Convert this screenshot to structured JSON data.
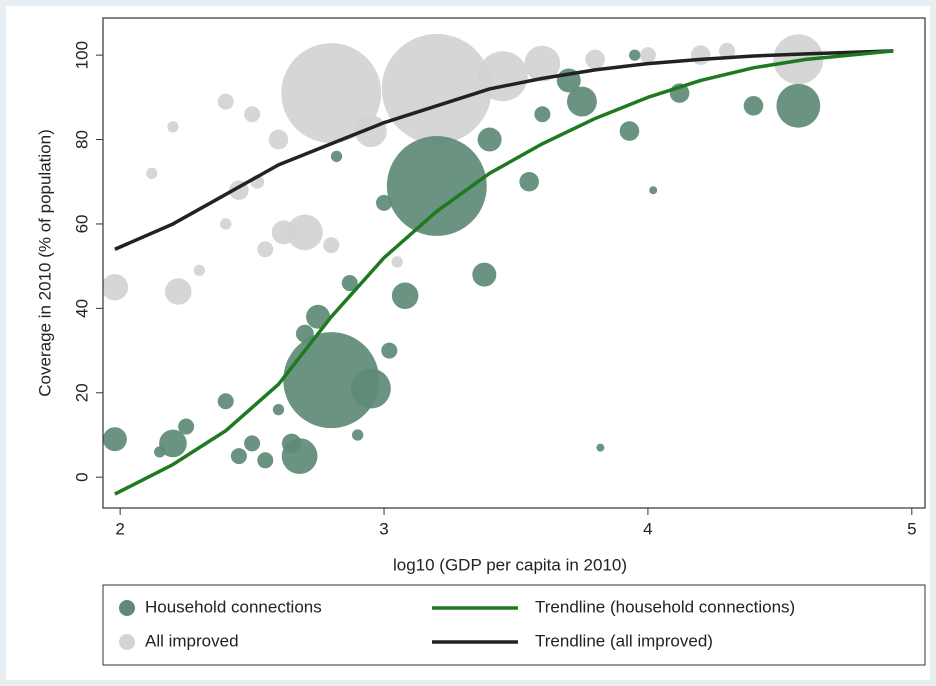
{
  "chart_data": {
    "type": "scatter",
    "xlabel": "log10 (GDP per capita in 2010)",
    "ylabel": "Coverage in 2010 (% of population)",
    "xlim": [
      1.935,
      5.05
    ],
    "ylim": [
      -7.3,
      108.8
    ],
    "xticks": [
      2,
      3,
      4,
      5
    ],
    "yticks": [
      0,
      20,
      40,
      60,
      80,
      100
    ],
    "series": [
      {
        "name": "All improved",
        "type": "scatter",
        "color": "#d3d3d3",
        "x": [
          1.98,
          2.22,
          2.12,
          2.2,
          2.4,
          2.45,
          2.55,
          2.62,
          2.7,
          2.6,
          2.8,
          2.95,
          3.2,
          3.45,
          3.6,
          3.8,
          4.0,
          4.2,
          4.57,
          4.3,
          2.8,
          3.05,
          2.5,
          2.3,
          2.4,
          2.52
        ],
        "y": [
          45,
          44,
          72,
          83,
          89,
          68,
          54,
          58,
          58,
          80,
          91,
          82,
          92,
          95,
          98,
          99,
          100,
          100,
          99,
          101,
          55,
          51,
          86,
          49,
          60,
          70
        ],
        "sizes": [
          11,
          11,
          2,
          2,
          4,
          6,
          4,
          9,
          20,
          6,
          156,
          16,
          189,
          39,
          20,
          6,
          4,
          6,
          39,
          4,
          4,
          2,
          4,
          2,
          2,
          3
        ]
      },
      {
        "name": "Household connections",
        "type": "scatter",
        "color": "#5e8a76",
        "x": [
          1.98,
          2.2,
          2.25,
          2.15,
          2.4,
          2.45,
          2.5,
          2.55,
          2.6,
          2.65,
          2.68,
          2.7,
          2.75,
          2.8,
          2.95,
          3.02,
          3.08,
          3.2,
          3.38,
          3.4,
          3.55,
          3.6,
          3.75,
          3.7,
          3.95,
          4.12,
          4.4,
          4.57,
          3.93,
          2.9,
          3.82,
          4.02,
          2.87,
          2.82,
          3.0
        ],
        "y": [
          9,
          8,
          12,
          6,
          18,
          5,
          8,
          4,
          16,
          8,
          5,
          34,
          38,
          23,
          21,
          30,
          43,
          69,
          48,
          80,
          70,
          86,
          89,
          94,
          100,
          91,
          88,
          88,
          82,
          10,
          7,
          68,
          46,
          76,
          65
        ],
        "sizes": [
          9,
          12,
          4,
          2,
          4,
          4,
          4,
          4,
          2,
          6,
          20,
          5,
          9,
          144,
          25,
          4,
          11,
          156,
          9,
          9,
          6,
          4,
          14,
          9,
          2,
          6,
          6,
          30,
          6,
          2,
          1,
          1,
          4,
          2,
          4
        ]
      },
      {
        "name": "Trendline (all improved)",
        "type": "line",
        "color": "#222222",
        "x": [
          1.98,
          2.2,
          2.4,
          2.6,
          2.8,
          3.0,
          3.2,
          3.4,
          3.6,
          3.8,
          4.0,
          4.2,
          4.4,
          4.6,
          4.93
        ],
        "y": [
          54,
          60,
          67,
          74,
          79,
          84,
          88,
          92,
          94.5,
          96.5,
          98,
          99,
          99.8,
          100.3,
          101
        ]
      },
      {
        "name": "Trendline (household connections)",
        "type": "line",
        "color": "#1f7a1f",
        "x": [
          1.98,
          2.2,
          2.4,
          2.6,
          2.8,
          3.0,
          3.2,
          3.4,
          3.6,
          3.8,
          4.0,
          4.2,
          4.4,
          4.6,
          4.93
        ],
        "y": [
          -4,
          3,
          11,
          22,
          38,
          52,
          63,
          72,
          79,
          85,
          90,
          94,
          97,
          99,
          101
        ]
      }
    ]
  }
}
